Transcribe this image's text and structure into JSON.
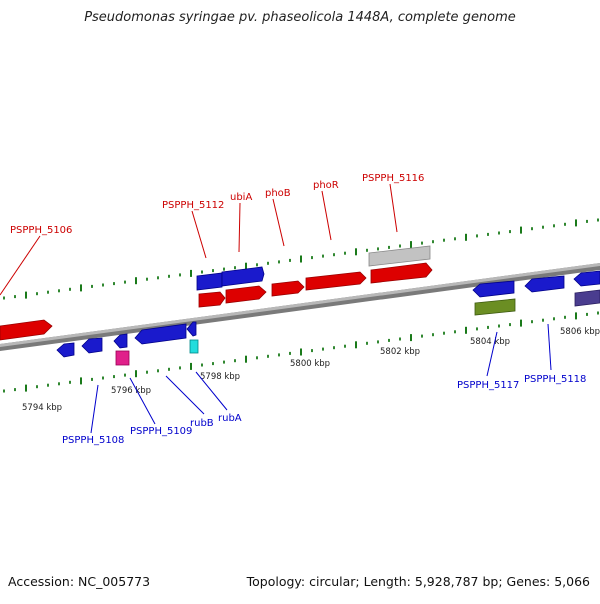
{
  "title": "Pseudomonas syringae pv. phaseolicola 1448A, complete genome",
  "footer": {
    "accession": "Accession: NC_005773",
    "summary": "Topology: circular; Length: 5,928,787 bp; Genes: 5,066"
  },
  "colors": {
    "backbone": "#8c8c8c",
    "ticks": "#1a7a1a",
    "upper_label": "#cc0000",
    "lower_label": "#0000cc",
    "scale_text": "#222222"
  },
  "scale_labels": [
    {
      "text": "5794 kbp",
      "kbp": 5794
    },
    {
      "text": "5796 kbp",
      "kbp": 5796
    },
    {
      "text": "5798 kbp",
      "kbp": 5798
    },
    {
      "text": "5800 kbp",
      "kbp": 5800
    },
    {
      "text": "5802 kbp",
      "kbp": 5802
    },
    {
      "text": "5804 kbp",
      "kbp": 5804
    },
    {
      "text": "5806 kbp",
      "kbp": 5806
    }
  ],
  "upper_labels": [
    {
      "text": "PSPPH_5106",
      "id": "label-pspph-5106"
    },
    {
      "text": "PSPPH_5112",
      "id": "label-pspph-5112"
    },
    {
      "text": "ubiA",
      "id": "label-ubia"
    },
    {
      "text": "phoB",
      "id": "label-phob"
    },
    {
      "text": "phoR",
      "id": "label-phor"
    },
    {
      "text": "PSPPH_5116",
      "id": "label-pspph-5116"
    }
  ],
  "lower_labels": [
    {
      "text": "PSPPH_5108",
      "id": "label-pspph-5108"
    },
    {
      "text": "PSPPH_5109",
      "id": "label-pspph-5109"
    },
    {
      "text": "rubB",
      "id": "label-rubb"
    },
    {
      "text": "rubA",
      "id": "label-ruba"
    },
    {
      "text": "PSPPH_5117",
      "id": "label-pspph-5117"
    },
    {
      "text": "PSPPH_5118",
      "id": "label-pspph-5118"
    }
  ]
}
